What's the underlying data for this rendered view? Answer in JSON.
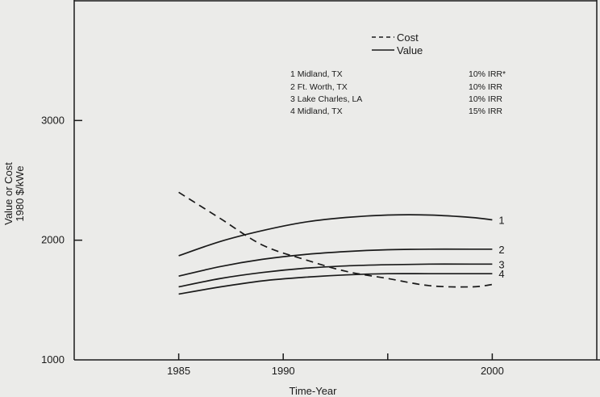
{
  "chart_data": {
    "type": "line",
    "title": "",
    "xlabel": "Time-Year",
    "ylabel_line1": "Value or Cost",
    "ylabel_line2": "1980 $/kWe",
    "xlim": [
      1980,
      2005
    ],
    "ylim": [
      1000,
      4000
    ],
    "x_ticks": [
      1985,
      1990,
      1995,
      2000
    ],
    "x_tick_labels": [
      "1985",
      "1990",
      "",
      "2000"
    ],
    "y_ticks": [
      1000,
      2000,
      3000
    ],
    "y_tick_labels": [
      "1000",
      "2000",
      "3000"
    ],
    "grid": false,
    "legend": {
      "placement": "top-right",
      "entries": [
        {
          "label": "Cost",
          "style": "dashed"
        },
        {
          "label": "Value",
          "style": "solid"
        }
      ]
    },
    "notes": [
      {
        "label": "1 Midland, TX",
        "irr": "10% IRR*"
      },
      {
        "label": "2 Ft. Worth, TX",
        "irr": "10% IRR"
      },
      {
        "label": "3 Lake Charles, LA",
        "irr": "10% IRR"
      },
      {
        "label": "4 Midland, TX",
        "irr": "15% IRR"
      }
    ],
    "series": [
      {
        "key": "cost",
        "style": "dashed",
        "end_label": "",
        "x": [
          1985,
          1987,
          1989,
          1991,
          1993,
          1995,
          1997,
          1999,
          2000
        ],
        "y": [
          2400,
          2180,
          1960,
          1840,
          1740,
          1680,
          1620,
          1610,
          1630
        ]
      },
      {
        "key": "value-1",
        "style": "solid",
        "end_label": "1",
        "x": [
          1985,
          1987,
          1989,
          1991,
          1993,
          1995,
          1997,
          1999,
          2000
        ],
        "y": [
          1870,
          1990,
          2080,
          2150,
          2190,
          2210,
          2210,
          2190,
          2170
        ]
      },
      {
        "key": "value-2",
        "style": "solid",
        "end_label": "2",
        "x": [
          1985,
          1987,
          1989,
          1991,
          1993,
          1995,
          1997,
          1999,
          2000
        ],
        "y": [
          1700,
          1780,
          1840,
          1880,
          1905,
          1920,
          1925,
          1925,
          1925
        ]
      },
      {
        "key": "value-3",
        "style": "solid",
        "end_label": "3",
        "x": [
          1985,
          1987,
          1989,
          1991,
          1993,
          1995,
          1997,
          1999,
          2000
        ],
        "y": [
          1610,
          1680,
          1730,
          1765,
          1785,
          1795,
          1800,
          1800,
          1800
        ]
      },
      {
        "key": "value-4",
        "style": "solid",
        "end_label": "4",
        "x": [
          1985,
          1987,
          1989,
          1991,
          1993,
          1995,
          1997,
          1999,
          2000
        ],
        "y": [
          1550,
          1610,
          1660,
          1690,
          1710,
          1720,
          1720,
          1720,
          1720
        ]
      }
    ]
  }
}
